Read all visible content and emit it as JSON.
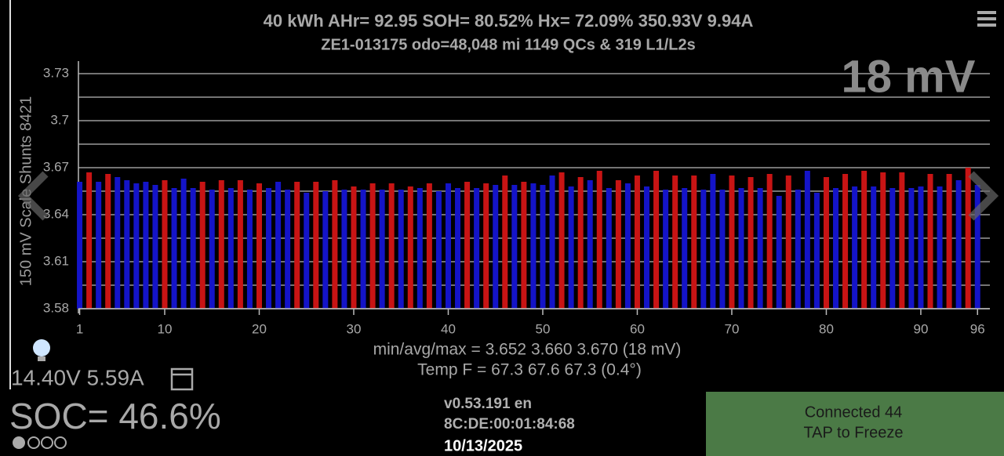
{
  "header": {
    "line1": "40 kWh  AHr= 92.95  SOH= 80.52%   Hx= 72.09%   350.93V 9.94A",
    "line2": "ZE1-013175 odo=48,048 mi  1149 QCs & 319 L1/L2s"
  },
  "chart_data": {
    "type": "bar",
    "annotation": "18 mV",
    "y_label": "150 mV Scale Shunts 8421",
    "x": [
      1,
      2,
      3,
      4,
      5,
      6,
      7,
      8,
      9,
      10,
      11,
      12,
      13,
      14,
      15,
      16,
      17,
      18,
      19,
      20,
      21,
      22,
      23,
      24,
      25,
      26,
      27,
      28,
      29,
      30,
      31,
      32,
      33,
      34,
      35,
      36,
      37,
      38,
      39,
      40,
      41,
      42,
      43,
      44,
      45,
      46,
      47,
      48,
      49,
      50,
      51,
      52,
      53,
      54,
      55,
      56,
      57,
      58,
      59,
      60,
      61,
      62,
      63,
      64,
      65,
      66,
      67,
      68,
      69,
      70,
      71,
      72,
      73,
      74,
      75,
      76,
      77,
      78,
      79,
      80,
      81,
      82,
      83,
      84,
      85,
      86,
      87,
      88,
      89,
      90,
      91,
      92,
      93,
      94,
      95,
      96
    ],
    "values": [
      3.661,
      3.667,
      3.661,
      3.666,
      3.664,
      3.662,
      3.66,
      3.661,
      3.659,
      3.662,
      3.657,
      3.663,
      3.657,
      3.661,
      3.656,
      3.662,
      3.657,
      3.662,
      3.656,
      3.66,
      3.657,
      3.661,
      3.656,
      3.661,
      3.654,
      3.661,
      3.655,
      3.662,
      3.656,
      3.658,
      3.656,
      3.66,
      3.656,
      3.66,
      3.656,
      3.658,
      3.657,
      3.66,
      3.655,
      3.66,
      3.657,
      3.661,
      3.657,
      3.66,
      3.659,
      3.665,
      3.659,
      3.661,
      3.66,
      3.659,
      3.665,
      3.667,
      3.658,
      3.664,
      3.662,
      3.668,
      3.657,
      3.662,
      3.66,
      3.665,
      3.658,
      3.668,
      3.656,
      3.665,
      3.657,
      3.665,
      3.656,
      3.666,
      3.656,
      3.665,
      3.657,
      3.664,
      3.657,
      3.666,
      3.652,
      3.665,
      3.656,
      3.668,
      3.654,
      3.664,
      3.657,
      3.666,
      3.658,
      3.668,
      3.658,
      3.667,
      3.657,
      3.667,
      3.657,
      3.658,
      3.666,
      3.658,
      3.666,
      3.662,
      3.67,
      3.659
    ],
    "colors": [
      "#1414c8",
      "#c81414",
      "#1414c8",
      "#c81414",
      "#1414c8",
      "#1414c8",
      "#1414c8",
      "#1414c8",
      "#1414c8",
      "#c81414",
      "#1414c8",
      "#1414c8",
      "#1414c8",
      "#c81414",
      "#1414c8",
      "#c81414",
      "#1414c8",
      "#c81414",
      "#1414c8",
      "#c81414",
      "#1414c8",
      "#1414c8",
      "#1414c8",
      "#c81414",
      "#1414c8",
      "#c81414",
      "#1414c8",
      "#c81414",
      "#1414c8",
      "#c81414",
      "#1414c8",
      "#c81414",
      "#1414c8",
      "#c81414",
      "#1414c8",
      "#c81414",
      "#1414c8",
      "#c81414",
      "#1414c8",
      "#1414c8",
      "#1414c8",
      "#c81414",
      "#1414c8",
      "#c81414",
      "#1414c8",
      "#c81414",
      "#1414c8",
      "#c81414",
      "#1414c8",
      "#1414c8",
      "#1414c8",
      "#c81414",
      "#1414c8",
      "#c81414",
      "#1414c8",
      "#c81414",
      "#1414c8",
      "#c81414",
      "#1414c8",
      "#c81414",
      "#1414c8",
      "#c81414",
      "#1414c8",
      "#c81414",
      "#1414c8",
      "#c81414",
      "#1414c8",
      "#1414c8",
      "#1414c8",
      "#c81414",
      "#1414c8",
      "#c81414",
      "#1414c8",
      "#c81414",
      "#1414c8",
      "#c81414",
      "#1414c8",
      "#1414c8",
      "#1414c8",
      "#c81414",
      "#1414c8",
      "#c81414",
      "#1414c8",
      "#c81414",
      "#1414c8",
      "#c81414",
      "#1414c8",
      "#c81414",
      "#1414c8",
      "#1414c8",
      "#c81414",
      "#1414c8",
      "#c81414",
      "#1414c8",
      "#c81414",
      "#1414c8"
    ],
    "xlim": [
      0,
      97
    ],
    "xticks": [
      1,
      10,
      20,
      30,
      40,
      50,
      60,
      70,
      80,
      90,
      96
    ],
    "ylim": [
      3.58,
      3.73
    ],
    "yticks": [
      3.58,
      3.61,
      3.64,
      3.67,
      3.7,
      3.73
    ],
    "yminorticks": [
      3.595,
      3.625,
      3.655,
      3.685,
      3.715
    ],
    "grid": true,
    "stats": "min/avg/max = 3.652 3.660 3.670  (18 mV)",
    "temp": "Temp F = 67.3  67.6  67.3  (0.4°)"
  },
  "status": {
    "aux": "14.40V 5.59A",
    "soc": "SOC= 46.6%",
    "version": "v0.53.191 en",
    "mac": "8C:DE:00:01:84:68",
    "date": "10/13/2025",
    "connected": "Connected 44",
    "tap": "TAP to Freeze"
  }
}
